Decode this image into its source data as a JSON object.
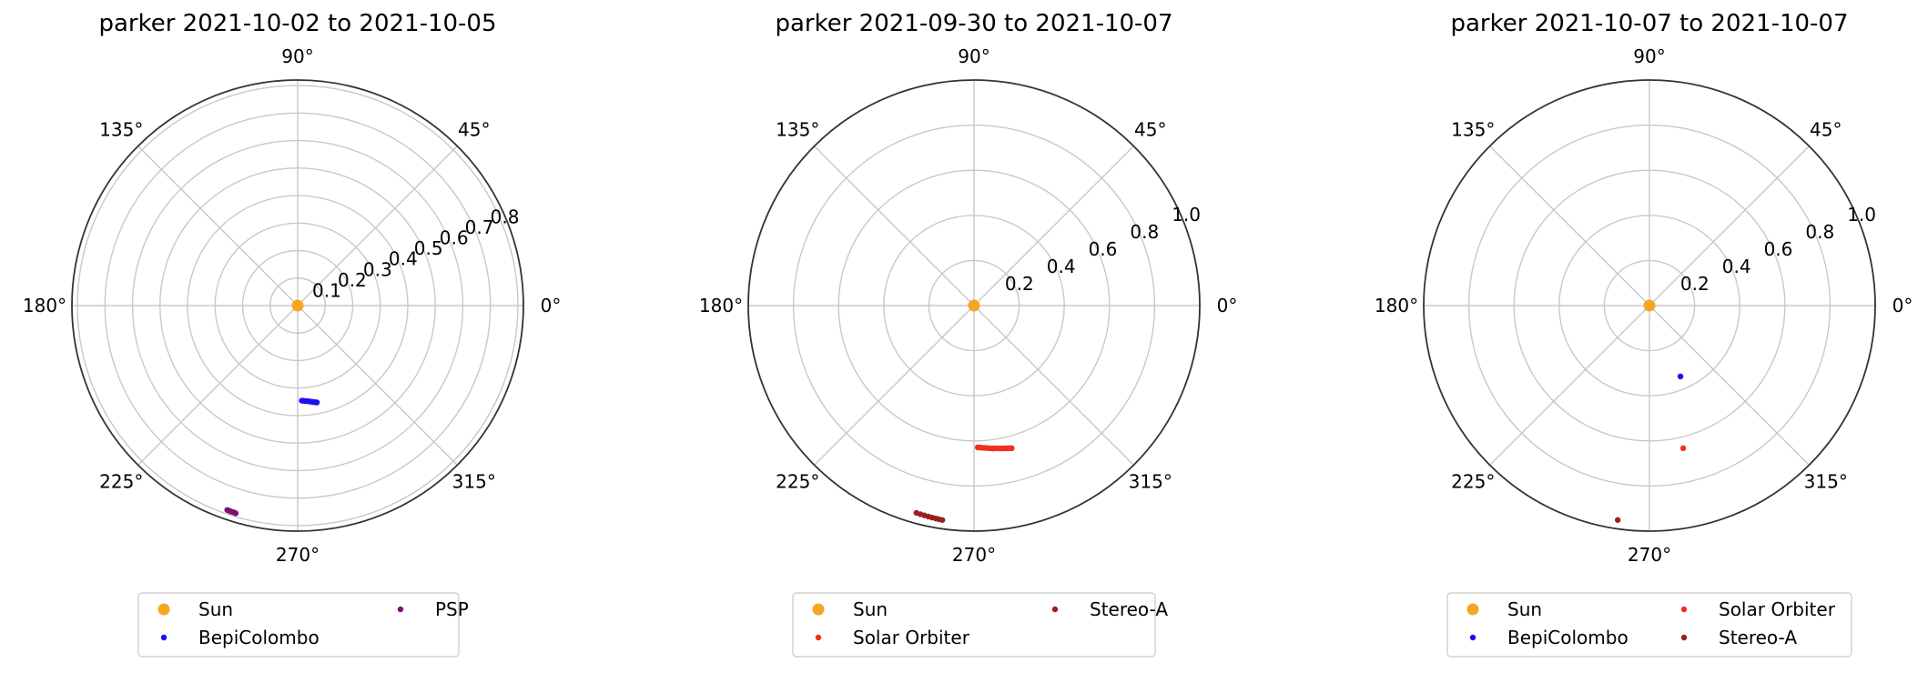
{
  "chart_data": [
    {
      "type": "scatter",
      "projection": "polar",
      "title": "parker 2021-10-02 to 2021-10-05",
      "rlim": [
        0,
        0.82
      ],
      "r_ticks": [
        0.1,
        0.2,
        0.3,
        0.4,
        0.5,
        0.6,
        0.7,
        0.8
      ],
      "r_tick_labels": [
        "0.1",
        "0.2",
        "0.3",
        "0.4",
        "0.5",
        "0.6",
        "0.7",
        "0.8"
      ],
      "theta_ticks_deg": [
        0,
        45,
        90,
        135,
        180,
        225,
        270,
        315
      ],
      "theta_tick_labels": [
        "0°",
        "45°",
        "90°",
        "135°",
        "180°",
        "225°",
        "270°",
        "315°"
      ],
      "grid": true,
      "legend": {
        "placement": "bottom",
        "columns": 2,
        "order": [
          "Sun",
          "BepiColombo",
          "PSP"
        ]
      },
      "series": [
        {
          "name": "Sun",
          "color": "#f5a623",
          "marker_size": 6.5,
          "points": [
            [
              0,
              0
            ]
          ]
        },
        {
          "name": "BepiColombo",
          "color": "#1a10f0",
          "marker_size": 3.2,
          "points": [
            [
              -87.5,
              0.346
            ],
            [
              -86.5,
              0.347
            ],
            [
              -85.5,
              0.348
            ],
            [
              -84.5,
              0.349
            ],
            [
              -83.5,
              0.35
            ],
            [
              -82.6,
              0.352
            ],
            [
              -81.8,
              0.353
            ],
            [
              -81.0,
              0.355
            ],
            [
              -80.2,
              0.356
            ],
            [
              -79.4,
              0.358
            ],
            [
              -78.8,
              0.359
            ]
          ]
        },
        {
          "name": "PSP",
          "color": "#7a1474",
          "marker_size": 3.2,
          "points": [
            [
              -109.0,
              0.786
            ],
            [
              -108.5,
              0.786
            ],
            [
              -108.0,
              0.787
            ],
            [
              -107.5,
              0.787
            ],
            [
              -107.0,
              0.787
            ],
            [
              -106.6,
              0.788
            ]
          ]
        }
      ]
    },
    {
      "type": "scatter",
      "projection": "polar",
      "title": "parker 2021-09-30 to 2021-10-07",
      "rlim": [
        0,
        1.0
      ],
      "r_ticks": [
        0.2,
        0.4,
        0.6,
        0.8,
        1.0
      ],
      "r_tick_labels": [
        "0.2",
        "0.4",
        "0.6",
        "0.8",
        "1.0"
      ],
      "theta_ticks_deg": [
        0,
        45,
        90,
        135,
        180,
        225,
        270,
        315
      ],
      "theta_tick_labels": [
        "0°",
        "45°",
        "90°",
        "135°",
        "180°",
        "225°",
        "270°",
        "315°"
      ],
      "grid": true,
      "legend": {
        "placement": "bottom",
        "columns": 2,
        "order": [
          "Sun",
          "Solar Orbiter",
          "Stereo-A"
        ]
      },
      "series": [
        {
          "name": "Sun",
          "color": "#f5a623",
          "marker_size": 6.5,
          "points": [
            [
              0,
              0
            ]
          ]
        },
        {
          "name": "Solar Orbiter",
          "color": "#f0301e",
          "marker_size": 3.2,
          "points": [
            [
              -88.5,
              0.629
            ],
            [
              -87.5,
              0.63
            ],
            [
              -86.5,
              0.632
            ],
            [
              -85.5,
              0.633
            ],
            [
              -84.5,
              0.635
            ],
            [
              -83.5,
              0.637
            ],
            [
              -82.5,
              0.639
            ],
            [
              -81.5,
              0.64
            ],
            [
              -80.5,
              0.642
            ],
            [
              -79.5,
              0.644
            ],
            [
              -78.5,
              0.646
            ],
            [
              -77.5,
              0.648
            ],
            [
              -76.7,
              0.65
            ],
            [
              -75.9,
              0.652
            ],
            [
              -75.2,
              0.654
            ]
          ]
        },
        {
          "name": "Stereo-A",
          "color": "#9a2020",
          "marker_size": 3.2,
          "points": [
            [
              -105.5,
              0.954
            ],
            [
              -104.4,
              0.955
            ],
            [
              -103.3,
              0.956
            ],
            [
              -102.2,
              0.957
            ],
            [
              -101.2,
              0.958
            ],
            [
              -100.2,
              0.959
            ],
            [
              -99.3,
              0.96
            ],
            [
              -98.4,
              0.961
            ]
          ]
        }
      ]
    },
    {
      "type": "scatter",
      "projection": "polar",
      "title": "parker 2021-10-07 to 2021-10-07",
      "rlim": [
        0,
        1.0
      ],
      "r_ticks": [
        0.2,
        0.4,
        0.6,
        0.8,
        1.0
      ],
      "r_tick_labels": [
        "0.2",
        "0.4",
        "0.6",
        "0.8",
        "1.0"
      ],
      "theta_ticks_deg": [
        0,
        45,
        90,
        135,
        180,
        225,
        270,
        315
      ],
      "theta_tick_labels": [
        "0°",
        "45°",
        "90°",
        "135°",
        "180°",
        "225°",
        "270°",
        "315°"
      ],
      "grid": true,
      "legend": {
        "placement": "bottom",
        "columns": 2,
        "order": [
          "Sun",
          "BepiColombo",
          "Solar Orbiter",
          "Stereo-A"
        ]
      },
      "series": [
        {
          "name": "Sun",
          "color": "#f5a623",
          "marker_size": 6.5,
          "points": [
            [
              0,
              0
            ]
          ]
        },
        {
          "name": "BepiColombo",
          "color": "#1a10f0",
          "marker_size": 3.2,
          "points": [
            [
              -66.4,
              0.343
            ]
          ]
        },
        {
          "name": "Solar Orbiter",
          "color": "#f0301e",
          "marker_size": 3.2,
          "points": [
            [
              -76.7,
              0.65
            ]
          ]
        },
        {
          "name": "Stereo-A",
          "color": "#9a2020",
          "marker_size": 3.2,
          "points": [
            [
              -98.4,
              0.961
            ]
          ]
        }
      ]
    }
  ]
}
